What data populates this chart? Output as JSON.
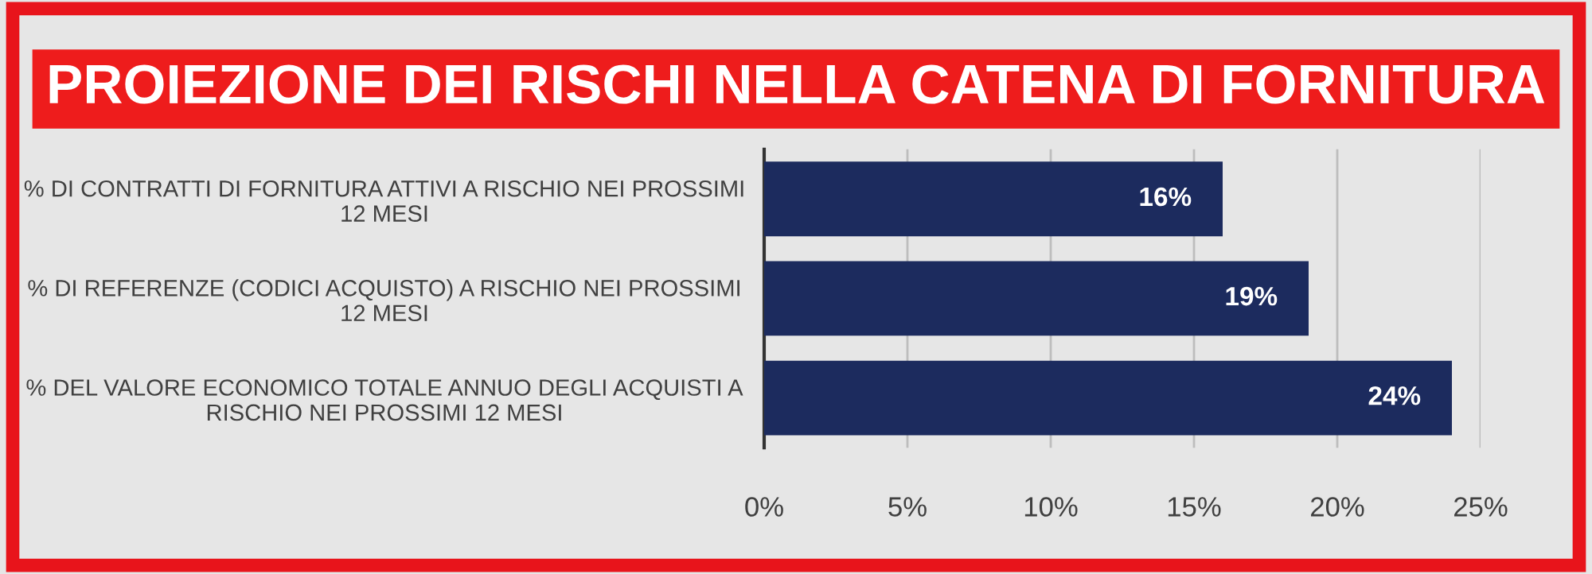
{
  "chart_data": {
    "type": "bar",
    "orientation": "horizontal",
    "title": "PROIEZIONE DEI RISCHI NELLA CATENA DI FORNITURA",
    "categories": [
      "% DI CONTRATTI DI FORNITURA ATTIVI A RISCHIO NEI PROSSIMI\n12 MESI",
      "% DI REFERENZE (CODICI ACQUISTO) A RISCHIO NEI PROSSIMI\n12 MESI",
      "% DEL VALORE ECONOMICO TOTALE ANNUO DEGLI ACQUISTI A\nRISCHIO NEI PROSSIMI 12 MESI"
    ],
    "values": [
      16,
      19,
      24
    ],
    "value_labels": [
      "16%",
      "19%",
      "24%"
    ],
    "color": "#1c2b5e",
    "xlim": [
      0,
      25
    ],
    "xticks": [
      {
        "value": 0,
        "label": "0%"
      },
      {
        "value": 5,
        "label": "5%"
      },
      {
        "value": 10,
        "label": "10%"
      },
      {
        "value": 15,
        "label": "15%"
      },
      {
        "value": 20,
        "label": "20%"
      },
      {
        "value": 25,
        "label": "25%"
      }
    ],
    "grid": "x",
    "legend": false
  }
}
